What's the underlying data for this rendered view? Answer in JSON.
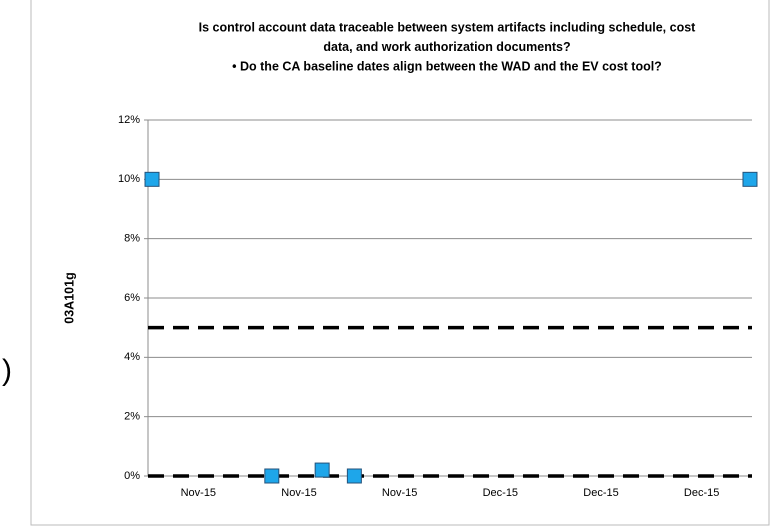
{
  "fragment": ")",
  "chart_data": {
    "type": "scatter",
    "title": [
      "Is control account data traceable between system artifacts including schedule, cost",
      "data, and work authorization documents?",
      "• Do the CA baseline dates align between the WAD and the EV cost tool?"
    ],
    "y_label": "03A101g",
    "xlim": [
      0,
      6
    ],
    "xticks": [
      {
        "value": 0.5,
        "label": "Nov-15"
      },
      {
        "value": 1.5,
        "label": "Nov-15"
      },
      {
        "value": 2.5,
        "label": "Nov-15"
      },
      {
        "value": 3.5,
        "label": "Dec-15"
      },
      {
        "value": 4.5,
        "label": "Dec-15"
      },
      {
        "value": 5.5,
        "label": "Dec-15"
      }
    ],
    "ylim": [
      0,
      12
    ],
    "yticks": [
      {
        "value": 0,
        "label": "0%"
      },
      {
        "value": 2,
        "label": "2%"
      },
      {
        "value": 4,
        "label": "4%"
      },
      {
        "value": 6,
        "label": "6%"
      },
      {
        "value": 8,
        "label": "8%"
      },
      {
        "value": 10,
        "label": "10%"
      },
      {
        "value": 12,
        "label": "12%"
      }
    ],
    "grid": true,
    "series": [
      {
        "color": "#1ea6ea",
        "x": [
          0.04,
          1.23,
          1.73,
          2.05,
          5.98
        ],
        "values": [
          10,
          0,
          0.2,
          0,
          10
        ]
      }
    ],
    "reference_lines": [
      5,
      0
    ]
  }
}
